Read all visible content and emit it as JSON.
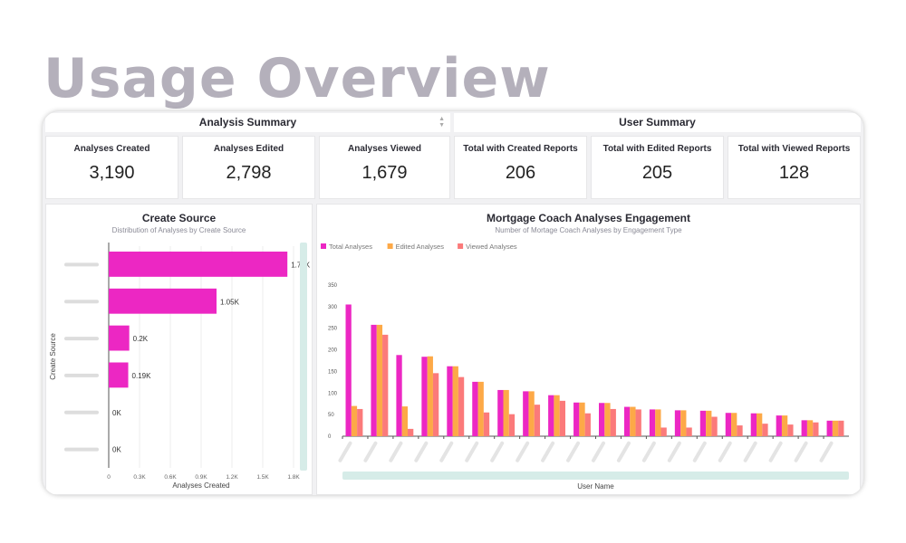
{
  "page_title": "Usage Overview",
  "headers": {
    "analysis": "Analysis Summary",
    "user": "User Summary"
  },
  "kpis": [
    {
      "label": "Analyses Created",
      "value": "3,190"
    },
    {
      "label": "Analyses Edited",
      "value": "2,798"
    },
    {
      "label": "Analyses Viewed",
      "value": "1,679"
    },
    {
      "label": "Total with Created Reports",
      "value": "206"
    },
    {
      "label": "Total with Edited Reports",
      "value": "205"
    },
    {
      "label": "Total with Viewed Reports",
      "value": "128"
    }
  ],
  "chart_data": [
    {
      "type": "bar",
      "orientation": "horizontal",
      "title": "Create Source",
      "subtitle": "Distribution of Analyses by Create Source",
      "xlabel": "Analyses Created",
      "ylabel": "Create Source",
      "values": [
        1740,
        1050,
        200,
        190,
        0,
        0
      ],
      "data_labels": [
        "1.74K",
        "1.05K",
        "0.2K",
        "0.19K",
        "0K",
        "0K"
      ],
      "xlim": [
        0,
        1800
      ],
      "x_ticks": [
        "0",
        "0.3K",
        "0.6K",
        "0.9K",
        "1.2K",
        "1.5K",
        "1.8K"
      ],
      "grid": true,
      "color": "#ec27c3"
    },
    {
      "type": "bar",
      "title": "Mortgage Coach Analyses Engagement",
      "subtitle": "Number of Mortage Coach Analyses by Engagement Type",
      "xlabel": "User Name",
      "ylabel": "",
      "ylim": [
        0,
        350
      ],
      "y_ticks": [
        "0",
        "50",
        "100",
        "150",
        "200",
        "250",
        "300",
        "350"
      ],
      "legend": "top-left",
      "series": [
        {
          "name": "Total Analyses",
          "color": "#ec27c3",
          "values": [
            305,
            258,
            188,
            184,
            162,
            126,
            107,
            104,
            95,
            78,
            77,
            68,
            62,
            60,
            59,
            54,
            53,
            48,
            37,
            36
          ]
        },
        {
          "name": "Edited Analyses",
          "color": "#fda947",
          "values": [
            70,
            258,
            69,
            185,
            162,
            126,
            107,
            104,
            95,
            78,
            77,
            68,
            62,
            60,
            59,
            54,
            53,
            48,
            37,
            36
          ]
        },
        {
          "name": "Viewed Analyses",
          "color": "#fb7a7a",
          "values": [
            63,
            235,
            17,
            146,
            137,
            55,
            51,
            73,
            82,
            53,
            63,
            62,
            20,
            20,
            45,
            25,
            29,
            27,
            32,
            36
          ]
        }
      ]
    }
  ]
}
